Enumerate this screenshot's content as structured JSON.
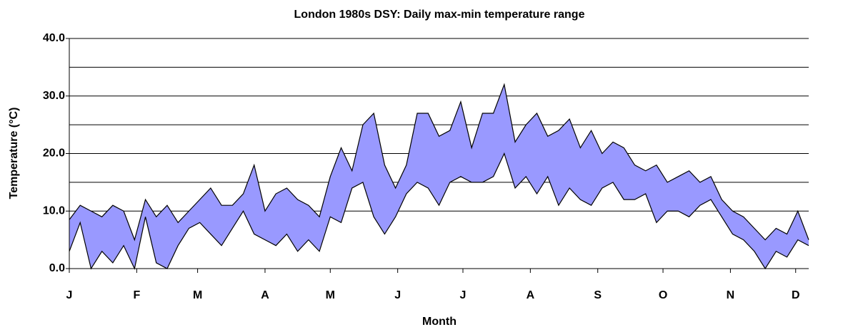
{
  "chart_data": {
    "type": "range-area",
    "title": "London 1980s DSY:  Daily max-min temperature range",
    "xlabel": "Month",
    "ylabel": "Temperature (°C)",
    "x": [
      0,
      5,
      10,
      15,
      20,
      25,
      30,
      35,
      40,
      45,
      50,
      55,
      60,
      65,
      70,
      75,
      80,
      85,
      90,
      95,
      100,
      105,
      110,
      115,
      120,
      125,
      130,
      135,
      140,
      145,
      150,
      155,
      160,
      165,
      170,
      175,
      180,
      185,
      190,
      195,
      200,
      205,
      210,
      215,
      220,
      225,
      230,
      235,
      240,
      245,
      250,
      255,
      260,
      265,
      270,
      275,
      280,
      285,
      290,
      295,
      300,
      305,
      310,
      315,
      320,
      325,
      330,
      335,
      340
    ],
    "series": [
      {
        "color": "#000000",
        "values": [
          8.5,
          11,
          10,
          9,
          11,
          10,
          5,
          12,
          9,
          11,
          8,
          10,
          12,
          14,
          11,
          11,
          13,
          18,
          10,
          13,
          14,
          12,
          11,
          9,
          16,
          21,
          17,
          25,
          27,
          18,
          14,
          18,
          27,
          27,
          23,
          24,
          29,
          21,
          27,
          27,
          32,
          22,
          25,
          27,
          23,
          24,
          26,
          21,
          24,
          20,
          22,
          21,
          18,
          17,
          18,
          15,
          16,
          17,
          15,
          16,
          12,
          10,
          9,
          7,
          5,
          7,
          6,
          10,
          5
        ]
      },
      {
        "color": "#000000",
        "values": [
          3,
          8,
          0,
          3,
          1,
          4,
          0,
          9,
          1,
          0,
          4,
          7,
          8,
          6,
          4,
          7,
          10,
          6,
          5,
          4,
          6,
          3,
          5,
          3,
          9,
          8,
          14,
          15,
          9,
          6,
          9,
          13,
          15,
          14,
          11,
          15,
          16,
          15,
          15,
          16,
          20,
          14,
          16,
          13,
          16,
          11,
          14,
          12,
          11,
          14,
          15,
          12,
          12,
          13,
          8,
          10,
          10,
          9,
          11,
          12,
          9,
          6,
          5,
          3,
          0,
          3,
          2,
          5,
          4
        ]
      }
    ],
    "fill_color": "#9999ff",
    "xlim": [
      0,
      340
    ],
    "xticks": [
      {
        "value": 0,
        "label": "J"
      },
      {
        "value": 31,
        "label": "F"
      },
      {
        "value": 59,
        "label": "M"
      },
      {
        "value": 90,
        "label": "A"
      },
      {
        "value": 120,
        "label": "M"
      },
      {
        "value": 151,
        "label": "J"
      },
      {
        "value": 181,
        "label": "J"
      },
      {
        "value": 212,
        "label": "A"
      },
      {
        "value": 243,
        "label": "S"
      },
      {
        "value": 273,
        "label": "O"
      },
      {
        "value": 304,
        "label": "N"
      },
      {
        "value": 334,
        "label": "D"
      }
    ],
    "ylim": [
      0,
      40
    ],
    "yticks": [
      {
        "value": 0,
        "label": "0.0"
      },
      {
        "value": 10,
        "label": "10.0"
      },
      {
        "value": 20,
        "label": "20.0"
      },
      {
        "value": 30,
        "label": "30.0"
      },
      {
        "value": 40,
        "label": "40.0"
      }
    ],
    "ygrid": [
      10,
      15,
      20,
      25,
      30,
      35,
      40
    ]
  }
}
